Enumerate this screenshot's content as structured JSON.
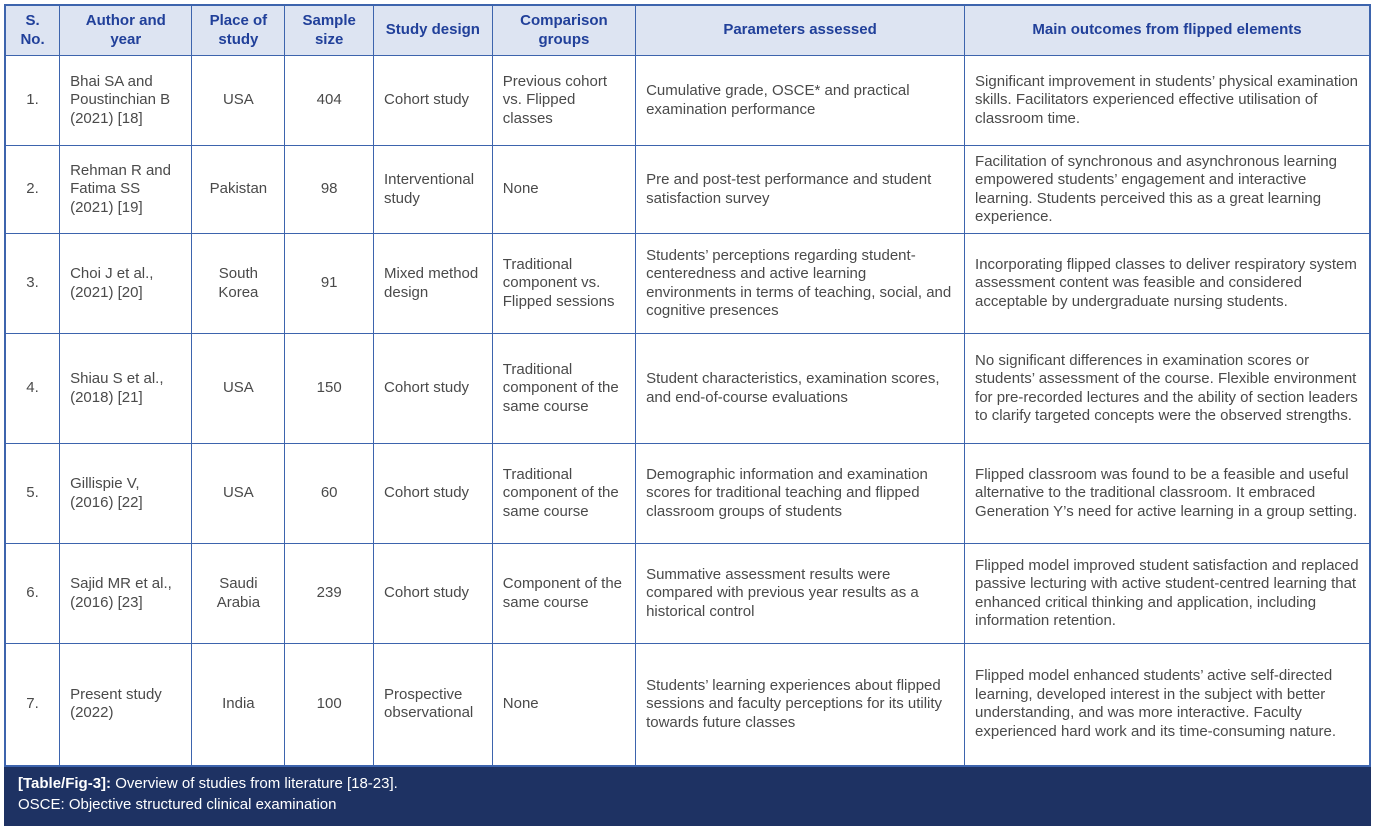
{
  "table": {
    "columns": [
      "S. No.",
      "Author and year",
      "Place of study",
      "Sample size",
      "Study design",
      "Comparison groups",
      "Parameters assessed",
      "Main outcomes from flipped elements"
    ],
    "rows": [
      [
        "1.",
        "Bhai SA and Poustinchian B (2021) [18]",
        "USA",
        "404",
        "Cohort study",
        "Previous cohort vs. Flipped classes",
        "Cumulative grade, OSCE* and practical examination performance",
        "Significant improvement in students’ physical examination skills. Facilitators experienced effective utilisation of classroom time."
      ],
      [
        "2.",
        "Rehman R and Fatima SS (2021) [19]",
        "Pakistan",
        "98",
        "Interventional study",
        "None",
        "Pre and post-test performance and student satisfaction survey",
        "Facilitation of synchronous and asynchronous learning empowered students’ engagement and interactive learning. Students perceived this as a great learning experience."
      ],
      [
        "3.",
        "Choi J et al., (2021) [20]",
        "South Korea",
        "91",
        "Mixed method design",
        "Traditional component vs. Flipped sessions",
        "Students’ perceptions regarding student-centeredness and active learning environments in terms of teaching, social, and cognitive presences",
        "Incorporating flipped classes to deliver respiratory system assessment content was feasible and considered acceptable by undergraduate nursing students."
      ],
      [
        "4.",
        "Shiau S et al., (2018) [21]",
        "USA",
        "150",
        "Cohort study",
        "Traditional component of the same course",
        "Student characteristics, examination scores, and end-of-course evaluations",
        "No significant differences in examination scores or students’ assessment of the course. Flexible environment for pre-recorded lectures and the ability of section leaders to clarify targeted concepts were the observed strengths."
      ],
      [
        "5.",
        "Gillispie V, (2016) [22]",
        "USA",
        "60",
        "Cohort study",
        "Traditional component of the same course",
        "Demographic information and examination scores for traditional teaching and flipped classroom groups of students",
        "Flipped classroom was found to be a feasible and useful alternative to the traditional classroom. It embraced Generation Y’s need for active learning in a group setting."
      ],
      [
        "6.",
        "Sajid MR et al., (2016) [23]",
        "Saudi Arabia",
        "239",
        "Cohort study",
        "Component of the same course",
        "Summative assessment results were compared with previous year results as a historical control",
        "Flipped model improved student satisfaction and replaced passive lecturing with active student-centred learning that enhanced critical thinking and application, including information retention."
      ],
      [
        "7.",
        "Present study (2022)",
        "India",
        "100",
        "Prospective observational",
        "None",
        "Students’ learning experiences about flipped sessions and faculty perceptions for its utility towards future classes",
        "Flipped model enhanced students’ active self-directed learning, developed interest in the subject with better understanding, and was more interactive. Faculty experienced hard work and its time-consuming nature."
      ]
    ],
    "caption_label": "[Table/Fig-3]:",
    "caption_text": " Overview of studies from literature [18-23].",
    "footnote": "OSCE: Objective structured clinical examination"
  },
  "colors": {
    "header_bg": "#dde4f2",
    "header_text": "#21409a",
    "border": "#3d64ad",
    "body_text": "#4a4a4a",
    "footer_bg": "#1e3263",
    "footer_text": "#ffffff"
  }
}
